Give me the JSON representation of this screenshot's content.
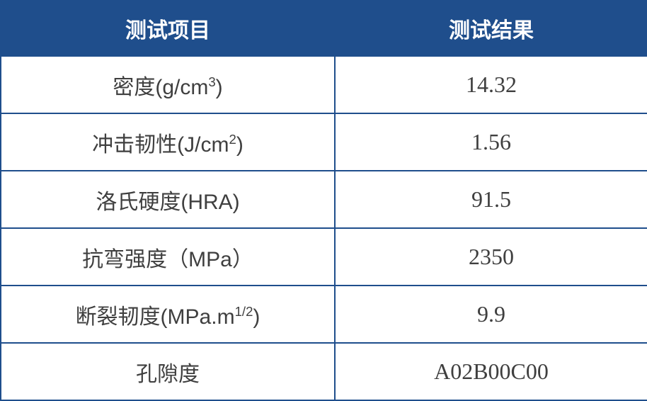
{
  "colors": {
    "header_bg": "#1F4E8C",
    "header_text": "#FFFFFF",
    "border": "#1F4E8C",
    "body_bg": "#FFFFFF",
    "body_text": "#3F3F3F"
  },
  "table": {
    "headers": [
      {
        "label": "测试项目"
      },
      {
        "label": "测试结果"
      }
    ],
    "rows": [
      {
        "item_pre": "密度(g/cm",
        "item_sup": "3",
        "item_post": ")",
        "result": "14.32"
      },
      {
        "item_pre": "冲击韧性(J/cm",
        "item_sup": "2",
        "item_post": ")",
        "result": "1.56"
      },
      {
        "item_pre": "洛氏硬度(HRA)",
        "item_sup": "",
        "item_post": "",
        "result": "91.5"
      },
      {
        "item_pre": "抗弯强度（MPa）",
        "item_sup": "",
        "item_post": "",
        "result": "2350"
      },
      {
        "item_pre": "断裂韧度(MPa.m",
        "item_sup": "1/2",
        "item_post": ")",
        "result": "9.9"
      },
      {
        "item_pre": "孔隙度",
        "item_sup": "",
        "item_post": "",
        "result": "A02B00C00"
      }
    ]
  },
  "chart_data": {
    "type": "table",
    "columns": [
      "测试项目",
      "测试结果"
    ],
    "rows": [
      [
        "密度(g/cm³)",
        "14.32"
      ],
      [
        "冲击韧性(J/cm²)",
        "1.56"
      ],
      [
        "洛氏硬度(HRA)",
        "91.5"
      ],
      [
        "抗弯强度（MPa）",
        "2350"
      ],
      [
        "断裂韧度(MPa.m¹/²)",
        "9.9"
      ],
      [
        "孔隙度",
        "A02B00C00"
      ]
    ]
  }
}
